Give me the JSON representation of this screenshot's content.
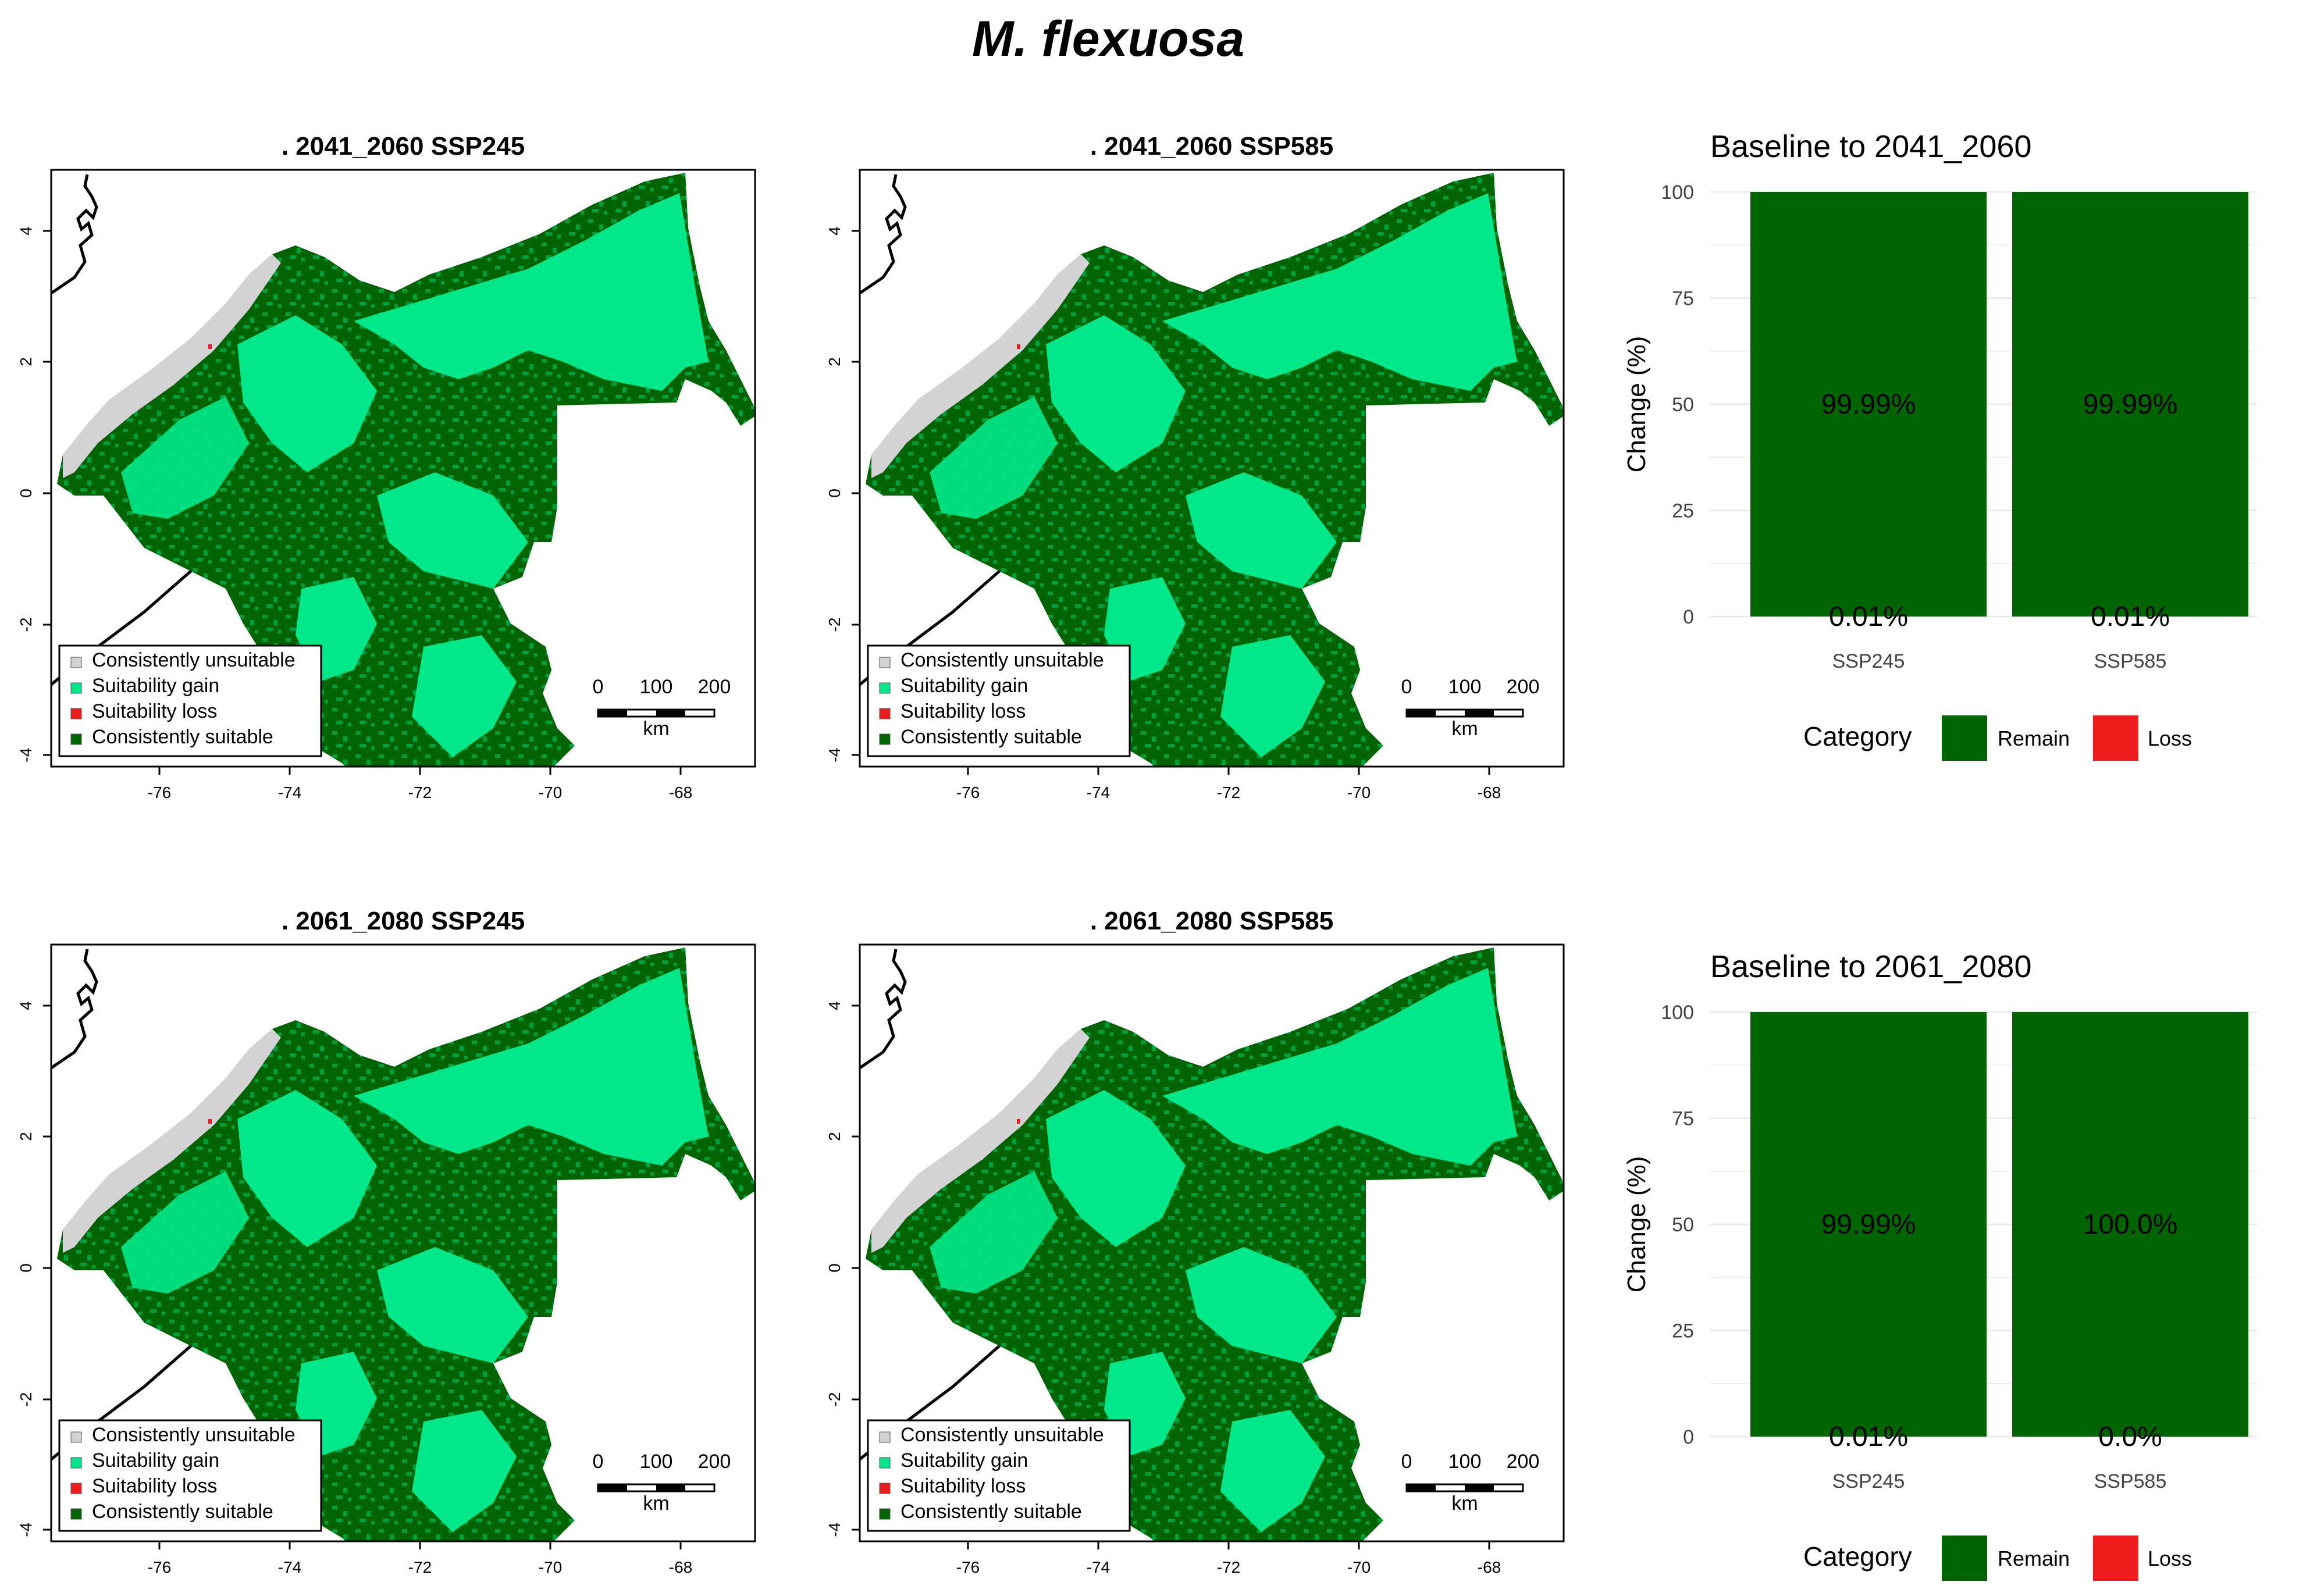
{
  "title": "M. flexuosa",
  "colors": {
    "unsuitable": "#d3d3d3",
    "gain": "#00e88a",
    "loss": "#ee1c1c",
    "suitable": "#006400",
    "remain": "#006400"
  },
  "map_axis": {
    "x_ticks": [
      "-76",
      "-74",
      "-72",
      "-70",
      "-68"
    ],
    "y_ticks": [
      "4",
      "2",
      "0",
      "-2",
      "-4"
    ]
  },
  "legend": {
    "items": [
      {
        "label": "Consistently unsuitable",
        "color": "#d3d3d3"
      },
      {
        "label": "Suitability gain",
        "color": "#00e88a"
      },
      {
        "label": "Suitability loss",
        "color": "#ee1c1c"
      },
      {
        "label": "Consistently suitable",
        "color": "#006400"
      }
    ]
  },
  "scale_bar": {
    "labels": [
      "0",
      "100",
      "200"
    ],
    "unit": "km"
  },
  "maps": [
    {
      "title": ". 2041_2060  SSP245"
    },
    {
      "title": ". 2041_2060  SSP585"
    },
    {
      "title": ". 2061_2080  SSP245"
    },
    {
      "title": ". 2061_2080  SSP585"
    }
  ],
  "chart_data": [
    {
      "type": "bar",
      "title": "Baseline to  2041_2060",
      "ylabel": "Change (%)",
      "ylim": [
        0,
        100
      ],
      "y_ticks": [
        "0",
        "25",
        "50",
        "75",
        "100"
      ],
      "categories": [
        "SSP245",
        "SSP585"
      ],
      "series": [
        {
          "name": "Remain",
          "values": [
            99.99,
            99.99
          ],
          "labels": [
            "99.99%",
            "99.99%"
          ]
        },
        {
          "name": "Loss",
          "values": [
            0.01,
            0.01
          ],
          "labels": [
            "0.01%",
            "0.01%"
          ]
        }
      ],
      "legend_title": "Category",
      "legend_items": [
        "Remain",
        "Loss"
      ]
    },
    {
      "type": "bar",
      "title": "Baseline to  2061_2080",
      "ylabel": "Change (%)",
      "ylim": [
        0,
        100
      ],
      "y_ticks": [
        "0",
        "25",
        "50",
        "75",
        "100"
      ],
      "categories": [
        "SSP245",
        "SSP585"
      ],
      "series": [
        {
          "name": "Remain",
          "values": [
            99.99,
            100.0
          ],
          "labels": [
            "99.99%",
            "100.0%"
          ]
        },
        {
          "name": "Loss",
          "values": [
            0.01,
            0.0
          ],
          "labels": [
            "0.01%",
            "0.0%"
          ]
        }
      ],
      "legend_title": "Category",
      "legend_items": [
        "Remain",
        "Loss"
      ]
    }
  ]
}
